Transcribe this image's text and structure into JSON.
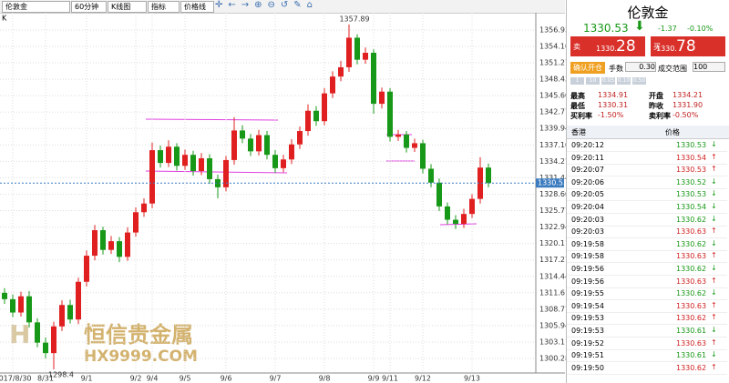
{
  "toolbar": {
    "symbol": "伦敦金",
    "period": "60分钟",
    "chart_kind": "K线图",
    "indicator": "指标",
    "price_line": "价格线",
    "corner": "K"
  },
  "watermark": {
    "brand": "恒信贵金属",
    "site": "HX9999.COM"
  },
  "chart_data": {
    "type": "candlestick",
    "categories": [
      null,
      "2017/8/30",
      null,
      null,
      null,
      "8/31",
      null,
      null,
      null,
      null,
      "9/1",
      null,
      null,
      null,
      null,
      null,
      "9/2",
      null,
      "9/4",
      null,
      null,
      null,
      "9/5",
      null,
      null,
      null,
      null,
      "9/6",
      null,
      null,
      null,
      null,
      null,
      "9/7",
      null,
      null,
      null,
      null,
      null,
      "9/8",
      null,
      null,
      null,
      null,
      null,
      "9/9",
      null,
      "9/11",
      null,
      null,
      null,
      "9/12",
      null,
      null,
      null,
      null,
      null,
      "9/13",
      null,
      null
    ],
    "open": [
      1311.6,
      1310.5,
      1308.2,
      1311.0,
      1306.5,
      1303.0,
      1301.2,
      1305.8,
      1309.5,
      1307.0,
      1313.5,
      1318.0,
      1322.4,
      1319.0,
      1320.5,
      1317.8,
      1322.0,
      1325.5,
      1327.0,
      1336.2,
      1334.0,
      1336.8,
      1333.5,
      1335.4,
      1332.6,
      1334.8,
      1331.2,
      1329.8,
      1334.5,
      1339.6,
      1338.2,
      1336.0,
      1338.8,
      1335.4,
      1333.1,
      1334.6,
      1337.2,
      1339.5,
      1343.0,
      1341.2,
      1346.0,
      1348.9,
      1350.5,
      1355.6,
      1351.8,
      1353.0,
      1344.2,
      1346.3,
      1338.5,
      1338.9,
      1336.6,
      1337.4,
      1333.0,
      1330.6,
      1326.5,
      1324.2,
      1323.5,
      1325.2,
      1327.8,
      1333.2
    ],
    "high": [
      1312.4,
      1311.3,
      1311.8,
      1311.9,
      1307.2,
      1303.9,
      1306.6,
      1310.3,
      1310.4,
      1314.2,
      1318.9,
      1323.3,
      1323.0,
      1321.4,
      1321.2,
      1322.9,
      1326.3,
      1327.9,
      1337.5,
      1337.0,
      1337.9,
      1337.4,
      1336.3,
      1336.1,
      1335.7,
      1335.5,
      1332.0,
      1335.2,
      1341.9,
      1340.5,
      1339.0,
      1339.7,
      1339.5,
      1336.2,
      1335.4,
      1338.1,
      1340.3,
      1344.1,
      1343.8,
      1346.9,
      1349.8,
      1351.6,
      1357.89,
      1356.2,
      1353.9,
      1353.6,
      1347.0,
      1346.9,
      1339.7,
      1339.5,
      1338.2,
      1338.0,
      1333.8,
      1331.3,
      1327.2,
      1325.0,
      1326.1,
      1328.6,
      1335.0,
      1333.9
    ],
    "low": [
      1309.7,
      1307.4,
      1307.5,
      1305.6,
      1302.2,
      1300.3,
      1298.4,
      1305.0,
      1306.3,
      1306.2,
      1312.7,
      1317.2,
      1318.2,
      1318.3,
      1316.9,
      1317.1,
      1321.3,
      1324.7,
      1326.2,
      1333.2,
      1333.3,
      1332.7,
      1332.8,
      1331.8,
      1331.9,
      1330.4,
      1327.9,
      1329.1,
      1333.7,
      1337.4,
      1335.2,
      1335.3,
      1334.6,
      1332.3,
      1332.4,
      1333.8,
      1336.4,
      1338.7,
      1340.4,
      1340.5,
      1345.2,
      1348.1,
      1349.7,
      1351.0,
      1351.1,
      1342.5,
      1343.4,
      1337.7,
      1337.8,
      1335.8,
      1335.9,
      1332.2,
      1329.8,
      1325.7,
      1323.4,
      1322.6,
      1322.8,
      1324.5,
      1327.0,
      1329.8
    ],
    "close": [
      1310.5,
      1308.2,
      1311.0,
      1306.5,
      1303.0,
      1301.2,
      1305.8,
      1309.5,
      1307.0,
      1313.5,
      1318.0,
      1322.4,
      1319.0,
      1320.5,
      1317.8,
      1322.0,
      1325.5,
      1327.0,
      1336.2,
      1334.0,
      1336.8,
      1333.5,
      1335.4,
      1332.6,
      1334.8,
      1331.2,
      1329.8,
      1334.5,
      1339.6,
      1338.2,
      1336.0,
      1338.8,
      1335.4,
      1333.1,
      1334.6,
      1337.2,
      1339.5,
      1343.0,
      1341.2,
      1346.0,
      1348.9,
      1350.5,
      1355.6,
      1351.8,
      1353.0,
      1344.2,
      1346.3,
      1338.5,
      1338.9,
      1336.6,
      1337.4,
      1333.0,
      1330.6,
      1326.5,
      1324.2,
      1323.5,
      1325.2,
      1327.8,
      1333.2,
      1330.53
    ],
    "up_color": "#e02020",
    "down_color": "#189818",
    "last_price": 1330.53,
    "high_label": {
      "index": 42,
      "value": 1357.89
    },
    "low_label": {
      "index": 6,
      "value": 1298.4
    },
    "ylim": [
      1297.77,
      1360.22
    ],
    "yticks": [
      {
        "value": 1300.28,
        "label": "1300.28"
      },
      {
        "value": 1303.11,
        "label": "1303.11"
      },
      {
        "value": 1305.94,
        "label": "1305.94"
      },
      {
        "value": 1308.77,
        "label": "1308.77"
      },
      {
        "value": 1311.61,
        "label": "1311.61"
      },
      {
        "value": 1314.44,
        "label": "1314.44"
      },
      {
        "value": 1317.27,
        "label": "1317.27"
      },
      {
        "value": 1320.11,
        "label": "1320.11"
      },
      {
        "value": 1322.94,
        "label": "1322.94"
      },
      {
        "value": 1325.77,
        "label": "1325.77"
      },
      {
        "value": 1328.6,
        "label": "1328.60"
      },
      {
        "value": 1331.44,
        "label": "1331.44"
      },
      {
        "value": 1334.27,
        "label": "1334.27"
      },
      {
        "value": 1337.1,
        "label": "1337.10"
      },
      {
        "value": 1339.94,
        "label": "1339.94"
      },
      {
        "value": 1342.77,
        "label": "1342.77"
      },
      {
        "value": 1345.6,
        "label": "1345.60"
      },
      {
        "value": 1348.43,
        "label": "1348.43"
      },
      {
        "value": 1351.27,
        "label": "1351.27"
      },
      {
        "value": 1354.1,
        "label": "1354.10"
      },
      {
        "value": 1356.93,
        "label": "1356.93"
      }
    ],
    "grid": true
  },
  "panel": {
    "title": "伦敦金",
    "price": "1330.53",
    "change": "-1.37",
    "change_pct": "-0.10%",
    "sell": {
      "label": "卖",
      "head": "1330.",
      "tail": "28"
    },
    "buy": {
      "label": "买",
      "head": "1330.",
      "tail": "78"
    },
    "open_button": "确认开仓",
    "lots_label": "手数",
    "lots": "0.30",
    "range_label": "成交范围",
    "range": "100",
    "quick": [
      "1",
      "10",
      "0.05",
      "0.10",
      "0.50"
    ],
    "stats": [
      [
        "最高",
        "1334.91",
        "开盘",
        "1334.21"
      ],
      [
        "最低",
        "1330.31",
        "昨收",
        "1331.90"
      ],
      [
        "买利率",
        "-1.50%",
        "卖利率",
        "-0.50%"
      ]
    ],
    "table_header": [
      "香港",
      "价格"
    ],
    "rows": [
      [
        "09:20:12",
        "1330.53",
        "down"
      ],
      [
        "09:20:11",
        "1330.54",
        "up"
      ],
      [
        "09:20:07",
        "1330.53",
        "up"
      ],
      [
        "09:20:06",
        "1330.52",
        "down"
      ],
      [
        "09:20:05",
        "1330.53",
        "down"
      ],
      [
        "09:20:04",
        "1330.54",
        "down"
      ],
      [
        "09:20:03",
        "1330.62",
        "down"
      ],
      [
        "09:20:03",
        "1330.63",
        "up"
      ],
      [
        "09:19:58",
        "1330.62",
        "down"
      ],
      [
        "09:19:58",
        "1330.63",
        "up"
      ],
      [
        "09:19:56",
        "1330.62",
        "down"
      ],
      [
        "09:19:56",
        "1330.63",
        "up"
      ],
      [
        "09:19:55",
        "1330.62",
        "down"
      ],
      [
        "09:19:54",
        "1330.63",
        "up"
      ],
      [
        "09:19:53",
        "1330.62",
        "up"
      ],
      [
        "09:19:53",
        "1330.61",
        "down"
      ],
      [
        "09:19:52",
        "1330.63",
        "up"
      ],
      [
        "09:19:51",
        "1330.61",
        "down"
      ],
      [
        "09:19:50",
        "1330.62",
        "up"
      ]
    ]
  }
}
